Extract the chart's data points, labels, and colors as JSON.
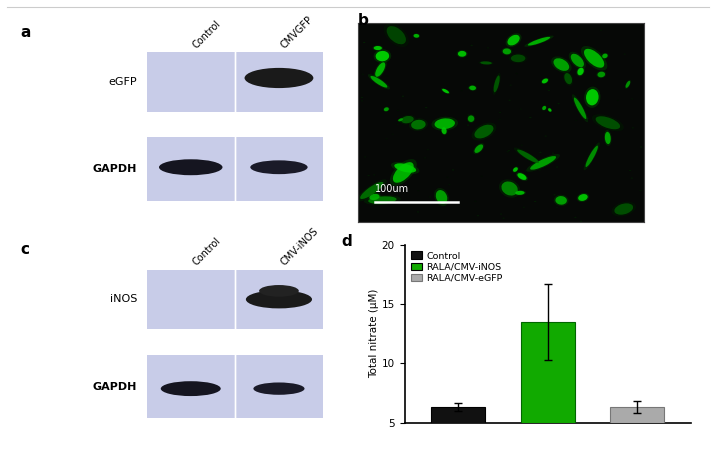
{
  "panel_label_fontsize": 11,
  "panel_label_fontweight": "bold",
  "western_blot_bg": "#c8cce8",
  "blot_a_col_labels": [
    "Control",
    "CMVGFP"
  ],
  "blot_c_col_labels": [
    "Control",
    "CMV-iNOS"
  ],
  "fluorescence_bg": "#060806",
  "scalebar_label": "100um",
  "bar_values": [
    6.3,
    13.5,
    6.3
  ],
  "bar_errors": [
    0.35,
    3.2,
    0.5
  ],
  "bar_colors": [
    "#111111",
    "#11aa00",
    "#aaaaaa"
  ],
  "bar_edge_colors": [
    "#000000",
    "#006600",
    "#777777"
  ],
  "ylabel": "Total nitrate (μM)",
  "ylim": [
    5,
    20
  ],
  "yticks": [
    5,
    10,
    15,
    20
  ],
  "bar_width": 0.6,
  "legend_labels": [
    "Control",
    "RALA/CMV-iNOS",
    "RALA/CMV-eGFP"
  ],
  "legend_colors": [
    "#111111",
    "#11aa00",
    "#aaaaaa"
  ],
  "figure_bg": "#ffffff",
  "axis_linewidth": 1.2,
  "top_border_color": "#cccccc"
}
